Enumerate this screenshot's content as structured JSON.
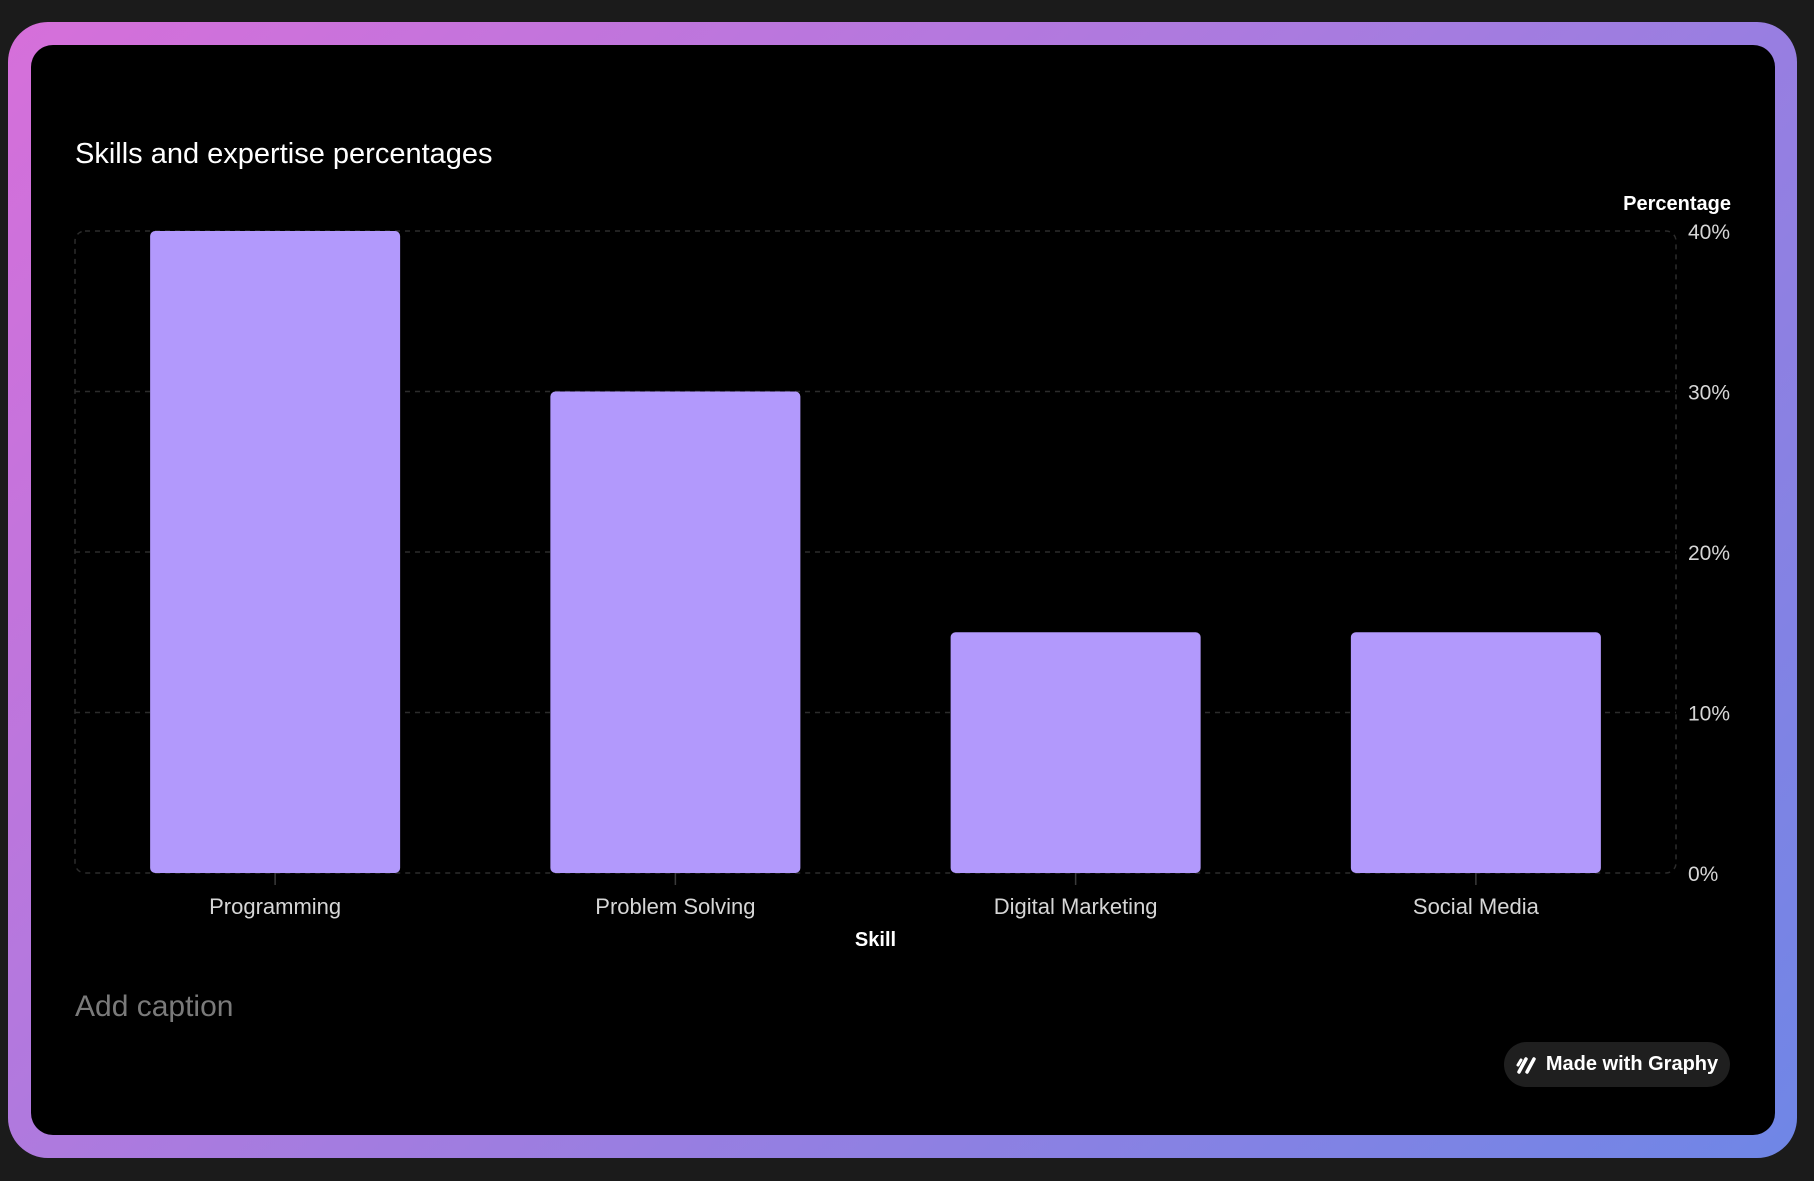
{
  "chart_data": {
    "type": "bar",
    "title": "Skills and expertise percentages",
    "xlabel": "Skill",
    "ylabel": "Percentage",
    "categories": [
      "Programming",
      "Problem Solving",
      "Digital Marketing",
      "Social Media"
    ],
    "values": [
      40,
      30,
      15,
      15
    ],
    "ylim": [
      0,
      40
    ],
    "yticks": [
      0,
      10,
      20,
      30,
      40
    ],
    "ytick_labels": [
      "0%",
      "10%",
      "20%",
      "30%",
      "40%"
    ],
    "y_axis_position": "right",
    "grid": true,
    "legend": "none",
    "bar_color": "#b299fc"
  },
  "caption": "Add caption",
  "badge": {
    "label": "Made with Graphy",
    "icon": "graphy-logo-icon"
  },
  "colors": {
    "background": "#000000",
    "frame_gradient_start": "#d66fda",
    "frame_gradient_end": "#6f86e6"
  }
}
